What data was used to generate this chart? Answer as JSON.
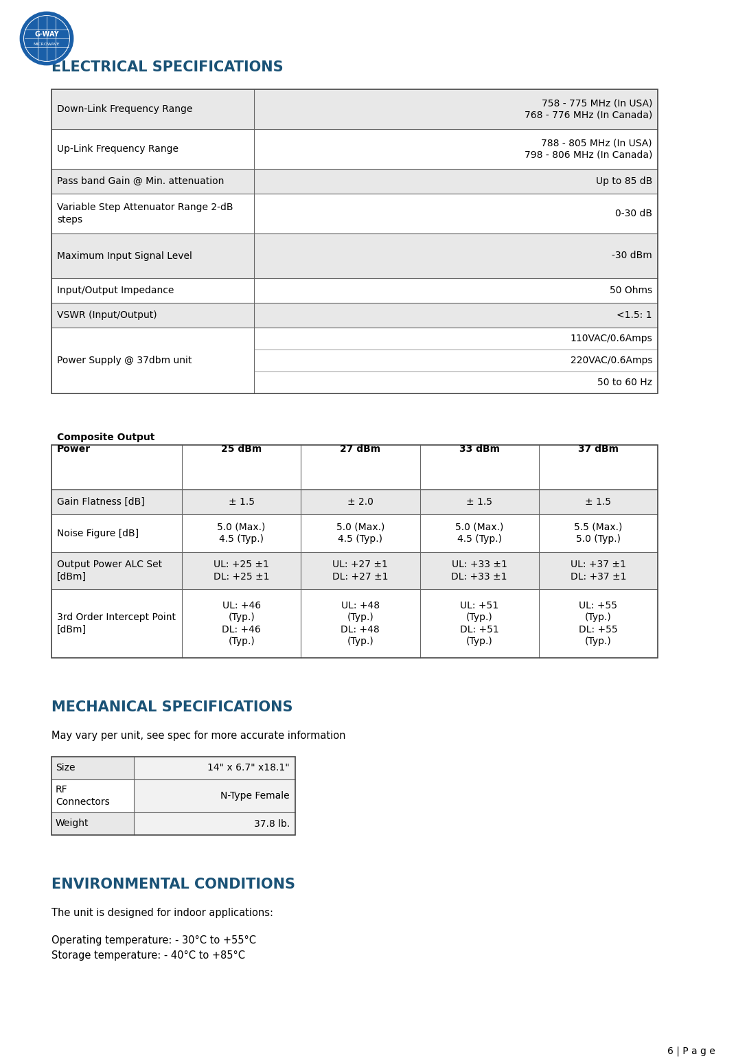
{
  "page_bg": "#ffffff",
  "header_color": "#1a5276",
  "title_elec": "ELECTRICAL SPECIFICATIONS",
  "title_mech": "MECHANICAL SPECIFICATIONS",
  "title_env": "ENVIRONMENTAL CONDITIONS",
  "elec_table": {
    "rows": [
      {
        "label": "Down-Link Frequency Range",
        "value": "758 - 775 MHz (In USA)\n768 - 776 MHz (In Canada)",
        "bg_left": "#e8e8e8",
        "bg_right": "#e8e8e8"
      },
      {
        "label": "Up-Link Frequency Range",
        "value": "788 - 805 MHz (In USA)\n798 - 806 MHz (In Canada)",
        "bg_left": "#ffffff",
        "bg_right": "#ffffff"
      },
      {
        "label": "Pass band Gain @ Min. attenuation",
        "value": "Up to 85 dB",
        "bg_left": "#e8e8e8",
        "bg_right": "#e8e8e8"
      },
      {
        "label": "Variable Step Attenuator Range 2-dB\nsteps",
        "value": "0-30 dB",
        "bg_left": "#ffffff",
        "bg_right": "#ffffff"
      },
      {
        "label": "Maximum Input Signal Level",
        "value": "-30 dBm",
        "bg_left": "#e8e8e8",
        "bg_right": "#e8e8e8"
      },
      {
        "label": "Input/Output Impedance",
        "value": "50 Ohms",
        "bg_left": "#ffffff",
        "bg_right": "#ffffff"
      },
      {
        "label": "VSWR (Input/Output)",
        "value": "<1.5: 1",
        "bg_left": "#e8e8e8",
        "bg_right": "#e8e8e8"
      },
      {
        "label": "Power Supply @ 37dbm unit",
        "value": "110VAC/0.6Amps\n220VAC/0.6Amps\n50 to 60 Hz",
        "bg_left": "#ffffff",
        "bg_right": "#ffffff"
      }
    ]
  },
  "perf_table": {
    "headers": [
      "Composite Output\nPower",
      "25 dBm",
      "27 dBm",
      "33 dBm",
      "37 dBm"
    ],
    "rows": [
      {
        "label": "Gain Flatness [dB]",
        "values": [
          "± 1.5",
          "± 2.0",
          "± 1.5",
          "± 1.5"
        ],
        "bg": "#e8e8e8"
      },
      {
        "label": "Noise Figure [dB]",
        "values": [
          "5.0 (Max.)\n4.5 (Typ.)",
          "5.0 (Max.)\n4.5 (Typ.)",
          "5.0 (Max.)\n4.5 (Typ.)",
          "5.5 (Max.)\n5.0 (Typ.)"
        ],
        "bg": "#ffffff"
      },
      {
        "label": "Output Power ALC Set\n[dBm]",
        "values": [
          "UL: +25 ±1\nDL: +25 ±1",
          "UL: +27 ±1\nDL: +27 ±1",
          "UL: +33 ±1\nDL: +33 ±1",
          "UL: +37 ±1\nDL: +37 ±1"
        ],
        "bg": "#e8e8e8"
      },
      {
        "label": "3rd Order Intercept Point\n[dBm]",
        "values": [
          "UL: +46\n(Typ.)\nDL: +46\n(Typ.)",
          "UL: +48\n(Typ.)\nDL: +48\n(Typ.)",
          "UL: +51\n(Typ.)\nDL: +51\n(Typ.)",
          "UL: +55\n(Typ.)\nDL: +55\n(Typ.)"
        ],
        "bg": "#ffffff"
      }
    ]
  },
  "mech_table": {
    "rows": [
      {
        "label": "Size",
        "value": "14\" x 6.7\" x18.1\"",
        "bg": "#e8e8e8"
      },
      {
        "label": "RF\nConnectors",
        "value": "N-Type Female",
        "bg": "#ffffff"
      },
      {
        "label": "Weight",
        "value": "37.8 lb.",
        "bg": "#e8e8e8"
      }
    ]
  },
  "env_text": [
    "The unit is designed for indoor applications:",
    "Operating temperature: - 30°C to +55°C",
    "Storage temperature: - 40°C to +85°C"
  ],
  "page_num": "6 | P a g e",
  "mech_note": "May vary per unit, see spec for more accurate information",
  "table_line_color": "#666666",
  "table_line_lw": 0.8
}
